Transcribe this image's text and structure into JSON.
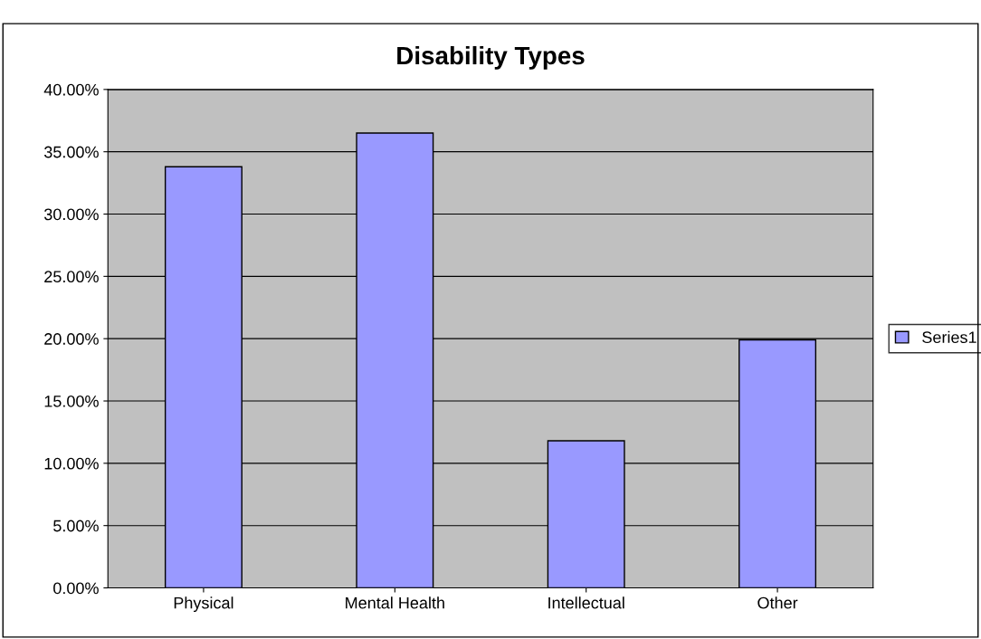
{
  "chart_data": {
    "type": "bar",
    "title": "Disability Types",
    "categories": [
      "Physical",
      "Mental Health",
      "Intellectual",
      "Other"
    ],
    "series": [
      {
        "name": "Series1",
        "color": "#9999ff",
        "values": [
          33.8,
          36.5,
          11.8,
          19.9
        ]
      }
    ],
    "ylim": [
      0,
      40
    ],
    "yticks": [
      {
        "value": 0,
        "label": "0.00%"
      },
      {
        "value": 5,
        "label": "5.00%"
      },
      {
        "value": 10,
        "label": "10.00%"
      },
      {
        "value": 15,
        "label": "15.00%"
      },
      {
        "value": 20,
        "label": "20.00%"
      },
      {
        "value": 25,
        "label": "25.00%"
      },
      {
        "value": 30,
        "label": "30.00%"
      },
      {
        "value": 35,
        "label": "35.00%"
      },
      {
        "value": 40,
        "label": "40.00%"
      }
    ],
    "grid": "y",
    "legend": "right"
  }
}
